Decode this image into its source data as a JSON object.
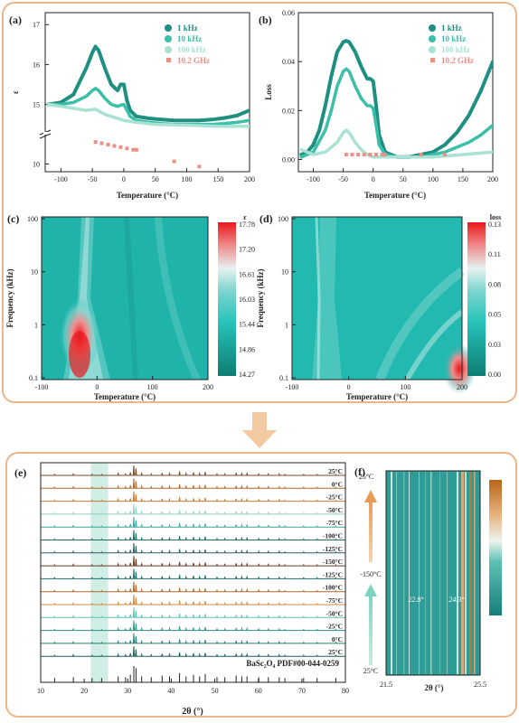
{
  "colors": {
    "frame_border": "#eab68a",
    "arrow": "#f3c9a2",
    "kHz1": "#1e8f80",
    "kHz10": "#3bbfa7",
    "kHz100": "#a9e2d4",
    "GHz": "#ee8f86",
    "warm": "#c9782c",
    "cool": "#2f8e8c",
    "highlight": "#c9ebe2"
  },
  "panel_a": {
    "label": "(a)",
    "chart_data": {
      "type": "scatter",
      "xlabel": "Temperature (°C)",
      "ylabel": "ε",
      "xlim": [
        -125,
        200
      ],
      "xticks": [
        "-100",
        "-50",
        "0",
        "50",
        "100",
        "150",
        "200"
      ],
      "yticks": [
        "10",
        "15",
        "16",
        "17"
      ],
      "y_axis_break": true,
      "legend_position": "top-right",
      "series": [
        {
          "name": "1 kHz",
          "x": [
            -120,
            -100,
            -80,
            -60,
            -50,
            -45,
            -40,
            -30,
            -20,
            -10,
            -5,
            0,
            5,
            10,
            20,
            40,
            60,
            80,
            100,
            120,
            140,
            160,
            180,
            200
          ],
          "y": [
            15.0,
            15.05,
            15.25,
            15.9,
            16.3,
            16.45,
            16.35,
            15.9,
            15.5,
            15.35,
            15.5,
            15.5,
            15.1,
            14.85,
            14.7,
            14.65,
            14.62,
            14.6,
            14.6,
            14.6,
            14.62,
            14.66,
            14.72,
            14.85
          ]
        },
        {
          "name": "10 kHz",
          "x": [
            -120,
            -100,
            -80,
            -60,
            -50,
            -45,
            -40,
            -30,
            -20,
            -10,
            -5,
            0,
            5,
            10,
            20,
            40,
            60,
            80,
            100,
            120,
            140,
            160,
            180,
            200
          ],
          "y": [
            15.0,
            15.0,
            15.05,
            15.2,
            15.35,
            15.4,
            15.35,
            15.15,
            15.0,
            14.95,
            14.98,
            15.0,
            14.85,
            14.7,
            14.6,
            14.55,
            14.52,
            14.5,
            14.5,
            14.5,
            14.5,
            14.52,
            14.55,
            14.6
          ]
        },
        {
          "name": "100 kHz",
          "x": [
            -120,
            -100,
            -80,
            -60,
            -45,
            -30,
            -10,
            0,
            20,
            50,
            100,
            150,
            200
          ],
          "y": [
            15.0,
            14.95,
            14.9,
            14.85,
            14.88,
            14.75,
            14.65,
            14.6,
            14.55,
            14.5,
            14.48,
            14.45,
            14.45
          ]
        },
        {
          "name": "10.2 GHz",
          "x": [
            -45,
            -35,
            -25,
            -15,
            -5,
            5,
            15,
            20,
            80,
            120
          ],
          "y": [
            10.85,
            10.8,
            10.75,
            10.7,
            10.65,
            10.6,
            10.55,
            10.55,
            10.1,
            9.9
          ]
        }
      ]
    }
  },
  "panel_b": {
    "label": "(b)",
    "chart_data": {
      "type": "scatter",
      "xlabel": "Temperature (°C)",
      "ylabel": "Loss",
      "xlim": [
        -125,
        200
      ],
      "ylim": [
        -0.005,
        0.06
      ],
      "xticks": [
        "-100",
        "-50",
        "0",
        "50",
        "100",
        "150",
        "200"
      ],
      "yticks": [
        "0.00",
        "0.02",
        "0.04",
        "0.06"
      ],
      "legend_position": "top-right",
      "series": [
        {
          "name": "1 kHz",
          "x": [
            -120,
            -110,
            -100,
            -90,
            -80,
            -70,
            -60,
            -50,
            -45,
            -40,
            -30,
            -20,
            -10,
            -5,
            0,
            5,
            10,
            20,
            40,
            60,
            80,
            100,
            120,
            140,
            160,
            180,
            200
          ],
          "y": [
            0.002,
            0.003,
            0.006,
            0.012,
            0.022,
            0.034,
            0.044,
            0.048,
            0.0485,
            0.048,
            0.044,
            0.038,
            0.033,
            0.033,
            0.032,
            0.022,
            0.01,
            0.003,
            0.001,
            0.001,
            0.002,
            0.003,
            0.006,
            0.011,
            0.018,
            0.028,
            0.04
          ]
        },
        {
          "name": "10 kHz",
          "x": [
            -120,
            -100,
            -80,
            -70,
            -60,
            -50,
            -45,
            -40,
            -30,
            -20,
            -10,
            -5,
            0,
            5,
            10,
            20,
            40,
            60,
            80,
            100,
            120,
            140,
            160,
            180,
            200
          ],
          "y": [
            0.001,
            0.003,
            0.012,
            0.02,
            0.03,
            0.036,
            0.037,
            0.036,
            0.03,
            0.025,
            0.022,
            0.022,
            0.021,
            0.014,
            0.006,
            0.002,
            0.001,
            0.001,
            0.001,
            0.002,
            0.003,
            0.005,
            0.007,
            0.01,
            0.014
          ]
        },
        {
          "name": "100 kHz",
          "x": [
            -120,
            -100,
            -80,
            -60,
            -50,
            -45,
            -40,
            -30,
            -20,
            -10,
            0,
            10,
            20,
            60,
            100,
            150,
            200
          ],
          "y": [
            0.004,
            0.002,
            0.003,
            0.007,
            0.011,
            0.012,
            0.011,
            0.007,
            0.004,
            0.002,
            0.001,
            0.001,
            0.001,
            0.001,
            0.001,
            0.002,
            0.003
          ]
        },
        {
          "name": "10.2 GHz",
          "x": [
            -45,
            -35,
            -25,
            -15,
            -5,
            5,
            15,
            20,
            80,
            120
          ],
          "y": [
            0.002,
            0.002,
            0.002,
            0.002,
            0.002,
            0.002,
            0.002,
            0.002,
            0.002,
            0.002
          ]
        }
      ]
    }
  },
  "panel_c": {
    "label": "(c)",
    "chart_data": {
      "type": "heatmap",
      "xlabel": "Temperature (°C)",
      "ylabel": "Frequency (kHz)",
      "xticks": [
        "-100",
        "0",
        "100",
        "200"
      ],
      "yticks": [
        "100",
        "10",
        "1",
        "0.1"
      ],
      "y_scale": "log",
      "colorbar_title": "ε",
      "colorbar_ticks": [
        "17.78",
        "17.20",
        "16.61",
        "16.03",
        "15.44",
        "14.86",
        "14.27"
      ]
    }
  },
  "panel_d": {
    "label": "(d)",
    "chart_data": {
      "type": "heatmap",
      "xlabel": "Temperature (°C)",
      "ylabel": "Frequency (kHz)",
      "xticks": [
        "-100",
        "0",
        "100",
        "200"
      ],
      "yticks": [
        "100",
        "10",
        "1",
        "0.1"
      ],
      "y_scale": "log",
      "colorbar_title": "loss",
      "colorbar_ticks": [
        "0.13",
        "0.11",
        "0.08",
        "0.05",
        "0.03",
        "0.00"
      ]
    }
  },
  "panel_e": {
    "label": "(e)",
    "chart_data": {
      "type": "line",
      "xlabel": "2θ (°)",
      "xlim": [
        10,
        80
      ],
      "xticks": [
        "10",
        "20",
        "30",
        "40",
        "50",
        "60",
        "70",
        "80"
      ],
      "reference_label": "BaSc₂O₄ PDF#00-044-0259",
      "highlight_range": [
        21.5,
        25.5
      ],
      "traces": [
        "25°C",
        "0°C",
        "-25°C",
        "-50°C",
        "-75°C",
        "-100°C",
        "-125°C",
        "-150°C",
        "-125°C",
        "-100°C",
        "-75°C",
        "-50°C",
        "-25°C",
        "0°C",
        "25°C"
      ]
    }
  },
  "panel_f": {
    "label": "(f)",
    "chart_data": {
      "type": "heatmap",
      "xlabel": "2θ (°)",
      "xlim": [
        21.5,
        25.5
      ],
      "xticks": [
        "21.5",
        "25.5"
      ],
      "y_labels": [
        "25°C",
        "-150°C",
        "25°C"
      ],
      "annotations": [
        "22.8°",
        "24.3°"
      ]
    }
  }
}
